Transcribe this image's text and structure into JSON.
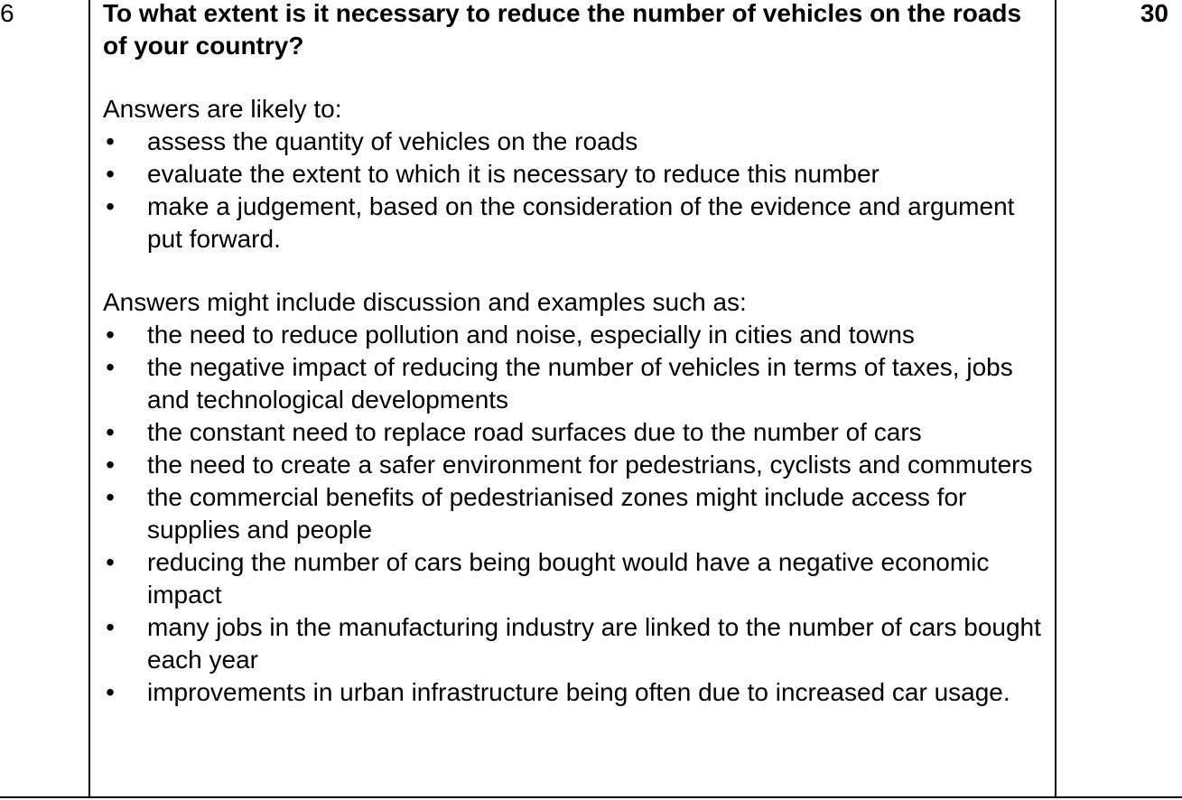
{
  "question": {
    "number": "6",
    "marks": "30",
    "title": "To what extent is it necessary to reduce the number of vehicles on the roads of your country?"
  },
  "likely": {
    "intro": "Answers are likely to:",
    "items": [
      "assess the quantity of vehicles on the roads",
      "evaluate the extent to which it is necessary to reduce this number",
      "make a judgement, based on the consideration of the evidence and argument put forward."
    ]
  },
  "examples": {
    "intro": "Answers might include discussion and examples such as:",
    "items": [
      "the need to reduce pollution and noise, especially in cities and towns",
      "the negative impact of reducing the number of vehicles in terms of taxes, jobs and technological developments",
      "the constant need to replace road surfaces due to the number of cars",
      "the need to create a safer environment for pedestrians, cyclists and commuters",
      "the commercial benefits of pedestrianised zones might include access for supplies and people",
      "reducing the number of cars being bought would have a negative economic impact",
      "many jobs in the manufacturing industry are linked to the number of cars bought each year",
      "improvements in urban infrastructure being often due to increased car usage."
    ]
  },
  "bullet_glyph": "•"
}
